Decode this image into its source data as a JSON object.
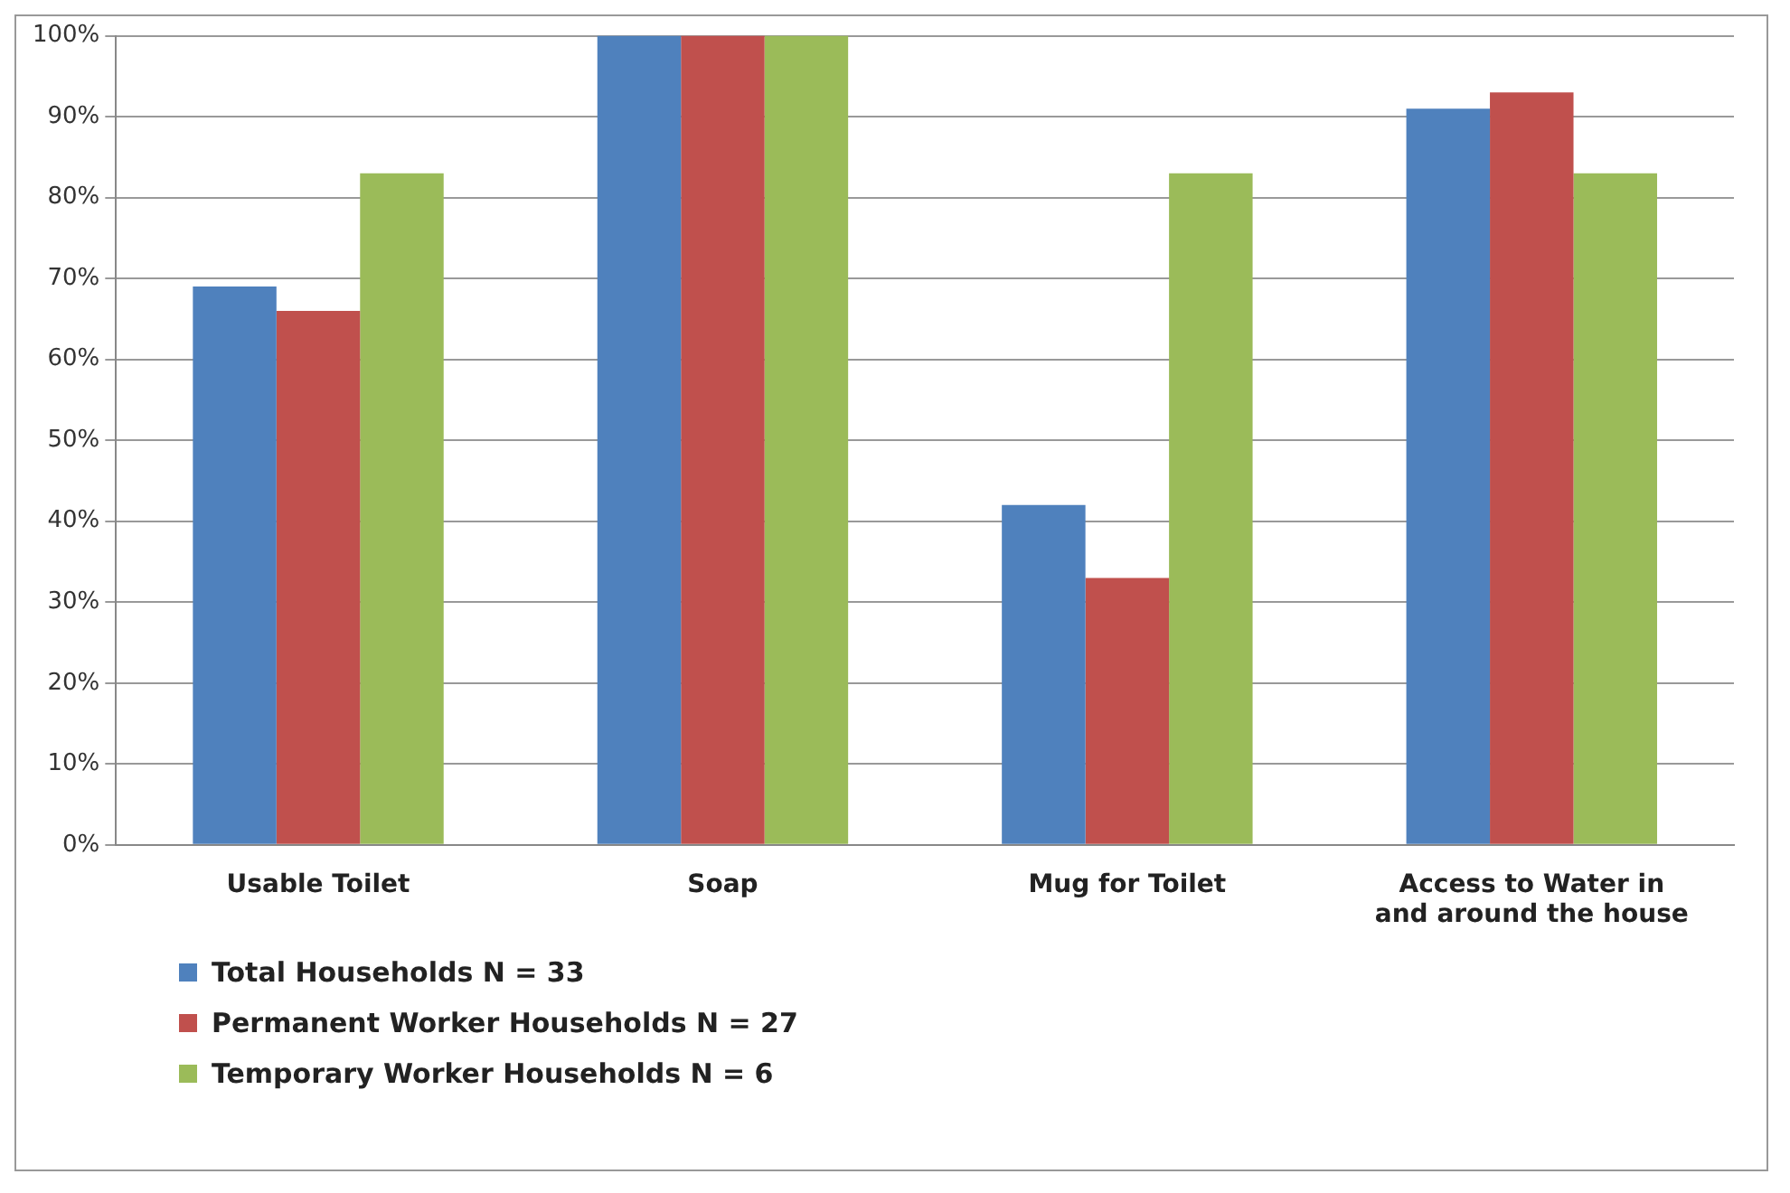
{
  "chart_data": {
    "type": "bar",
    "categories": [
      "Usable Toilet",
      "Soap",
      "Mug for Toilet",
      "Access to Water in and around the house"
    ],
    "series": [
      {
        "name": "Total Households N = 33",
        "color": "#4f81bd",
        "values": [
          69,
          100,
          42,
          91
        ]
      },
      {
        "name": "Permanent Worker Households N = 27",
        "color": "#c0504d",
        "values": [
          66,
          100,
          33,
          93
        ]
      },
      {
        "name": "Temporary Worker Households N = 6",
        "color": "#9bbb59",
        "values": [
          83,
          100,
          83,
          83
        ]
      }
    ],
    "ylim": [
      0,
      100
    ],
    "yticks": [
      {
        "value": 0,
        "label": "0%"
      },
      {
        "value": 10,
        "label": "10%"
      },
      {
        "value": 20,
        "label": "20%"
      },
      {
        "value": 30,
        "label": "30%"
      },
      {
        "value": 40,
        "label": "40%"
      },
      {
        "value": 50,
        "label": "50%"
      },
      {
        "value": 60,
        "label": "60%"
      },
      {
        "value": 70,
        "label": "70%"
      },
      {
        "value": 80,
        "label": "80%"
      },
      {
        "value": 90,
        "label": "90%"
      },
      {
        "value": 100,
        "label": "100%"
      }
    ],
    "grid": "y",
    "legend": "bottom left"
  }
}
